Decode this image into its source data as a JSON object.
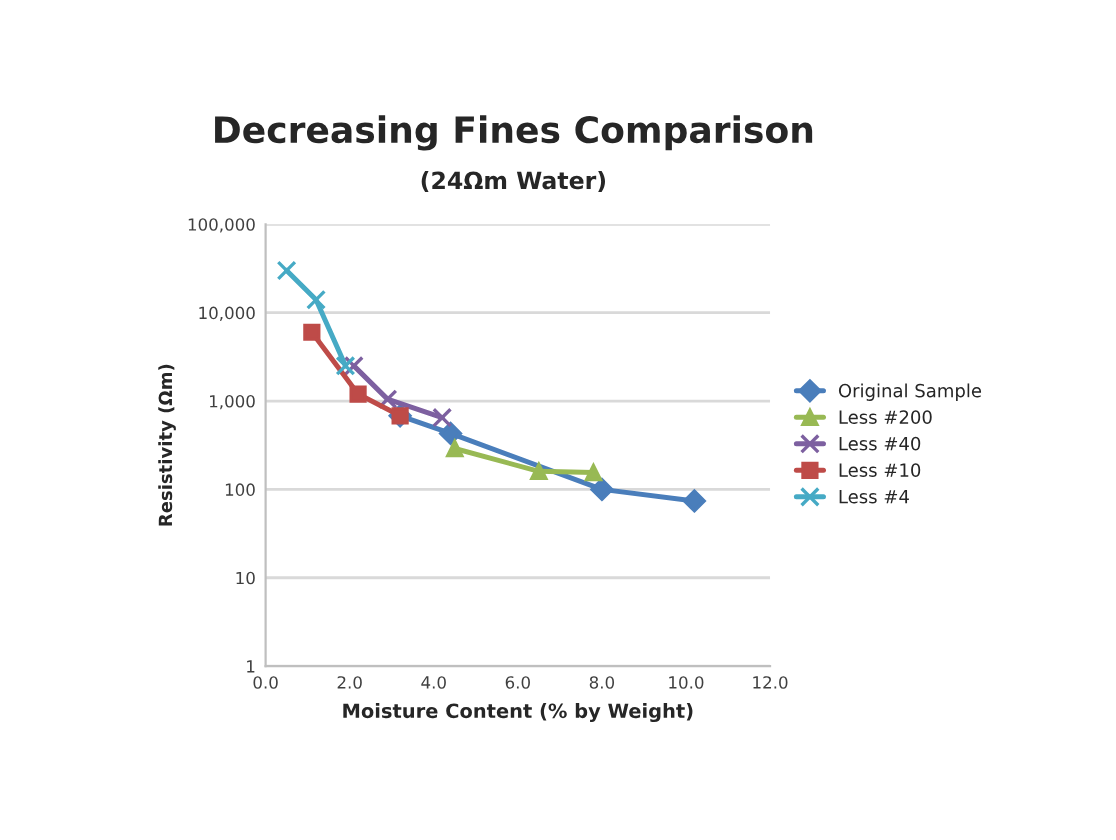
{
  "chart_data": {
    "type": "line",
    "title": "Decreasing Fines Comparison",
    "subtitle": "(24Ωm Water)",
    "xlabel": "Moisture Content (% by Weight)",
    "ylabel": "Resistivity (Ωm)",
    "log": "y",
    "xlim": [
      0,
      12
    ],
    "xticks": [
      {
        "value": 0,
        "label": "0.0"
      },
      {
        "value": 2,
        "label": "2.0"
      },
      {
        "value": 4,
        "label": "4.0"
      },
      {
        "value": 6,
        "label": "6.0"
      },
      {
        "value": 8,
        "label": "8.0"
      },
      {
        "value": 10,
        "label": "10.0"
      },
      {
        "value": 12,
        "label": "12.0"
      }
    ],
    "ylim": [
      1,
      100000
    ],
    "yticks": [
      1,
      10,
      100,
      {
        "value": 1000,
        "label": "1,000"
      },
      {
        "value": 10000,
        "label": "10,000"
      },
      {
        "value": 100000,
        "label": "100,000"
      }
    ],
    "grid": "y",
    "legend": "right",
    "series": [
      {
        "name": "Original Sample",
        "color": "#4a7ebb",
        "marker": "diamond",
        "x": [
          3.2,
          4.4,
          8.0,
          10.2
        ],
        "values": [
          680,
          430,
          100,
          74
        ]
      },
      {
        "name": "Less #200",
        "color": "#98b954",
        "marker": "triangle",
        "x": [
          4.5,
          6.5,
          7.8
        ],
        "values": [
          290,
          160,
          155
        ]
      },
      {
        "name": "Less #40",
        "color": "#7d60a0",
        "marker": "cross",
        "x": [
          2.1,
          2.9,
          4.2
        ],
        "values": [
          2500,
          1050,
          650
        ]
      },
      {
        "name": "Less #10",
        "color": "#be4b48",
        "marker": "square",
        "x": [
          1.1,
          2.2,
          3.2
        ],
        "values": [
          6000,
          1200,
          680
        ]
      },
      {
        "name": "Less #4",
        "color": "#46aac5",
        "marker": "cross",
        "x": [
          0.5,
          1.2,
          1.9
        ],
        "values": [
          30000,
          14000,
          2500
        ]
      }
    ]
  }
}
